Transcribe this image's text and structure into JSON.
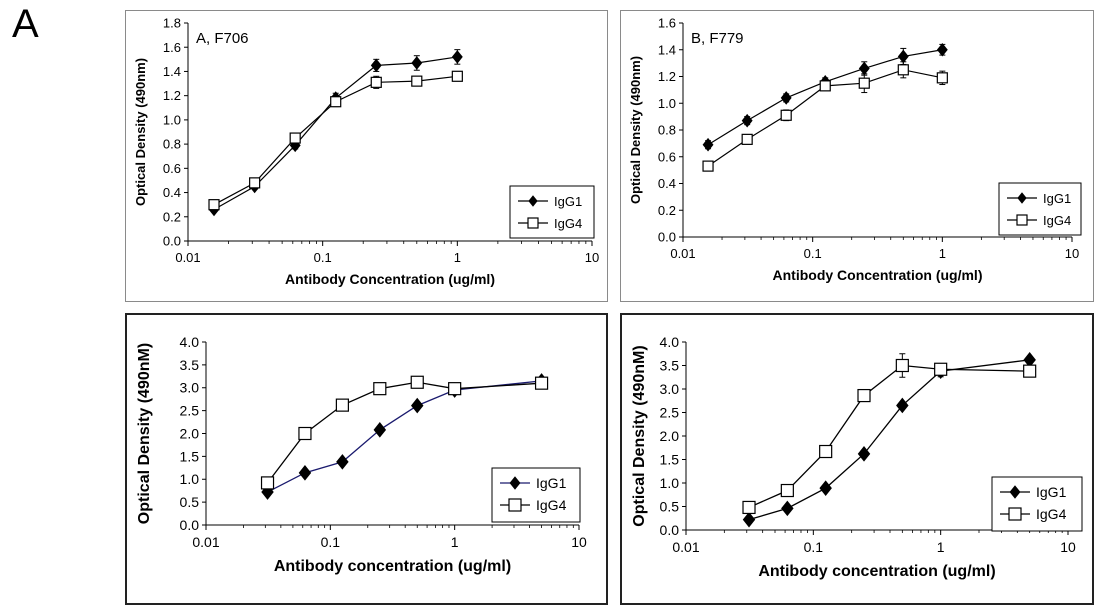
{
  "figure_label": "A",
  "chart_data": [
    {
      "type": "line",
      "panel_label": "A, F706",
      "xlabel": "Antibody Concentration (ug/ml)",
      "ylabel": "Optical Density (490nm)",
      "xscale": "log",
      "xlim": [
        0.01,
        10
      ],
      "ylim": [
        0,
        1.8
      ],
      "x_ticks": [
        "0.01",
        "0.1",
        "1",
        "10"
      ],
      "y_ticks": [
        "0.0",
        "0.2",
        "0.4",
        "0.6",
        "0.8",
        "1.0",
        "1.2",
        "1.4",
        "1.6",
        "1.8"
      ],
      "legend_position": "bottom-right",
      "grid": false,
      "series": [
        {
          "name": "IgG1",
          "marker": "filled-diamond",
          "line_color": "#000000",
          "x": [
            0.0156,
            0.03125,
            0.0625,
            0.125,
            0.25,
            0.5,
            1
          ],
          "y": [
            0.26,
            0.45,
            0.79,
            1.18,
            1.45,
            1.47,
            1.52
          ],
          "error": [
            0.02,
            0.02,
            0.03,
            0.04,
            0.05,
            0.06,
            0.06
          ]
        },
        {
          "name": "IgG4",
          "marker": "open-square",
          "line_color": "#000000",
          "x": [
            0.0156,
            0.03125,
            0.0625,
            0.125,
            0.25,
            0.5,
            1
          ],
          "y": [
            0.3,
            0.48,
            0.85,
            1.15,
            1.31,
            1.32,
            1.36
          ],
          "error": [
            0.02,
            0.03,
            0.03,
            0.04,
            0.05,
            0.03,
            0.03
          ]
        }
      ]
    },
    {
      "type": "line",
      "panel_label": "B, F779",
      "xlabel": "Antibody Concentration (ug/ml)",
      "ylabel": "Optical Density (490nm)",
      "xscale": "log",
      "xlim": [
        0.01,
        10
      ],
      "ylim": [
        0,
        1.6
      ],
      "x_ticks": [
        "0.01",
        "0.1",
        "1",
        "10"
      ],
      "y_ticks": [
        "0.0",
        "0.2",
        "0.4",
        "0.6",
        "0.8",
        "1.0",
        "1.2",
        "1.4",
        "1.6"
      ],
      "legend_position": "bottom-right",
      "grid": false,
      "series": [
        {
          "name": "IgG1",
          "marker": "filled-diamond",
          "line_color": "#000000",
          "x": [
            0.0156,
            0.03125,
            0.0625,
            0.125,
            0.25,
            0.5,
            1
          ],
          "y": [
            0.69,
            0.87,
            1.04,
            1.16,
            1.26,
            1.35,
            1.4
          ],
          "error": [
            0.03,
            0.03,
            0.03,
            0.03,
            0.05,
            0.06,
            0.04
          ]
        },
        {
          "name": "IgG4",
          "marker": "open-square",
          "line_color": "#000000",
          "x": [
            0.0156,
            0.03125,
            0.0625,
            0.125,
            0.25,
            0.5,
            1
          ],
          "y": [
            0.53,
            0.73,
            0.91,
            1.13,
            1.15,
            1.25,
            1.19
          ],
          "error": [
            0.03,
            0.03,
            0.04,
            0.03,
            0.07,
            0.06,
            0.05
          ]
        }
      ]
    },
    {
      "type": "line",
      "panel_label": "",
      "xlabel": "Antibody concentration (ug/ml)",
      "ylabel": "Optical Density (490nM)",
      "xscale": "log",
      "xlim": [
        0.01,
        10
      ],
      "ylim": [
        0,
        4.0
      ],
      "x_ticks": [
        "0.01",
        "0.1",
        "1",
        "10"
      ],
      "y_ticks": [
        "0.0",
        "0.5",
        "1.0",
        "1.5",
        "2.0",
        "2.5",
        "3.0",
        "3.5",
        "4.0"
      ],
      "legend_position": "bottom-right",
      "grid": false,
      "series": [
        {
          "name": "IgG1",
          "marker": "filled-diamond",
          "line_color": "#1a1a6e",
          "x": [
            0.03125,
            0.0625,
            0.125,
            0.25,
            0.5,
            1,
            5
          ],
          "y": [
            0.72,
            1.14,
            1.38,
            2.08,
            2.61,
            2.95,
            3.15
          ]
        },
        {
          "name": "IgG4",
          "marker": "open-square",
          "line_color": "#000000",
          "x": [
            0.03125,
            0.0625,
            0.125,
            0.25,
            0.5,
            1,
            5
          ],
          "y": [
            0.92,
            2.0,
            2.62,
            2.98,
            3.12,
            2.98,
            3.1
          ]
        }
      ]
    },
    {
      "type": "line",
      "panel_label": "",
      "xlabel": "Antibody concentration (ug/ml)",
      "ylabel": "Optical Density (490nM)",
      "xscale": "log",
      "xlim": [
        0.01,
        10
      ],
      "ylim": [
        0,
        4.0
      ],
      "x_ticks": [
        "0.01",
        "0.1",
        "1",
        "10"
      ],
      "y_ticks": [
        "0.0",
        "0.5",
        "1.0",
        "1.5",
        "2.0",
        "2.5",
        "3.0",
        "3.5",
        "4.0"
      ],
      "legend_position": "bottom-right",
      "grid": false,
      "series": [
        {
          "name": "IgG1",
          "marker": "filled-diamond",
          "line_color": "#000000",
          "x": [
            0.03125,
            0.0625,
            0.125,
            0.25,
            0.5,
            1,
            5
          ],
          "y": [
            0.22,
            0.46,
            0.89,
            1.62,
            2.65,
            3.38,
            3.62
          ],
          "error": [
            0,
            0,
            0,
            0,
            0,
            0.12,
            0.06
          ]
        },
        {
          "name": "IgG4",
          "marker": "open-square",
          "line_color": "#000000",
          "x": [
            0.03125,
            0.0625,
            0.125,
            0.25,
            0.5,
            1,
            5
          ],
          "y": [
            0.48,
            0.84,
            1.67,
            2.86,
            3.5,
            3.42,
            3.38
          ],
          "error": [
            0,
            0,
            0,
            0,
            0.25,
            0.05,
            0.05
          ]
        }
      ]
    }
  ]
}
